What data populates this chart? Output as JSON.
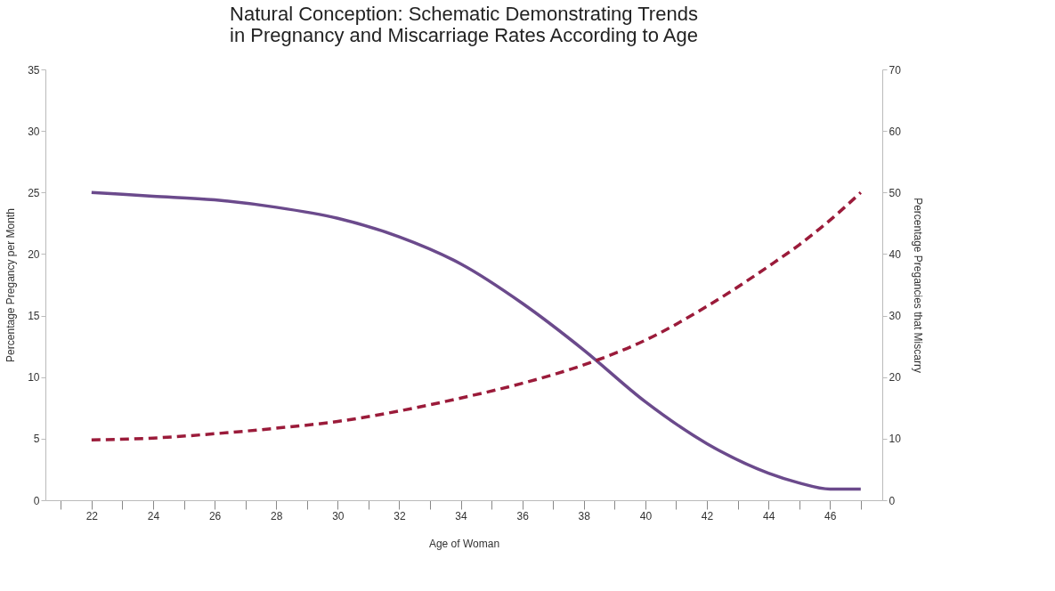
{
  "chart_data": {
    "type": "line",
    "title": "Natural Conception: Schematic Demonstrating Trends\nin Pregnancy and Miscarriage Rates According to Age",
    "xlabel": "Age of Woman",
    "ylabel": "Percentage Pregancy per Month",
    "y2label": "Percentage Pregancies that Miscarry",
    "x": [
      22,
      24,
      26,
      28,
      30,
      32,
      34,
      36,
      38,
      40,
      42,
      44,
      45,
      46,
      47
    ],
    "series": [
      {
        "color": "#6b4a8c",
        "line_style": "solid",
        "values": [
          25,
          24.7,
          24.4,
          23.8,
          22.9,
          21.4,
          19.2,
          16.0,
          12.2,
          8.0,
          4.6,
          2.2,
          1.4,
          0.9,
          0.9
        ]
      },
      {
        "color": "#9b1b3a",
        "line_style": "dashed",
        "axis": "y2",
        "values": [
          9.8,
          10.1,
          10.8,
          11.7,
          12.8,
          14.5,
          16.6,
          19,
          22,
          26,
          31.5,
          38,
          41.5,
          45.5,
          50
        ]
      }
    ],
    "xlim": [
      20.5,
      47.7
    ],
    "xticks": [
      {
        "value": 21,
        "label": null
      },
      22,
      {
        "value": 23,
        "label": null
      },
      24,
      {
        "value": 25,
        "label": null
      },
      26,
      {
        "value": 27,
        "label": null
      },
      28,
      {
        "value": 29,
        "label": null
      },
      30,
      {
        "value": 31,
        "label": null
      },
      32,
      {
        "value": 33,
        "label": null
      },
      34,
      {
        "value": 35,
        "label": null
      },
      36,
      {
        "value": 37,
        "label": null
      },
      38,
      {
        "value": 39,
        "label": null
      },
      40,
      {
        "value": 41,
        "label": null
      },
      42,
      {
        "value": 43,
        "label": null
      },
      44,
      {
        "value": 45,
        "label": null
      },
      46,
      {
        "value": 47,
        "label": null
      }
    ],
    "ylim": [
      0,
      35
    ],
    "yticks": [
      0,
      5,
      10,
      15,
      20,
      25,
      30,
      35
    ],
    "y2lim": [
      0,
      70
    ],
    "y2ticks": [
      0,
      10,
      20,
      30,
      40,
      50,
      60,
      70
    ],
    "grid": false,
    "marker": "none"
  }
}
